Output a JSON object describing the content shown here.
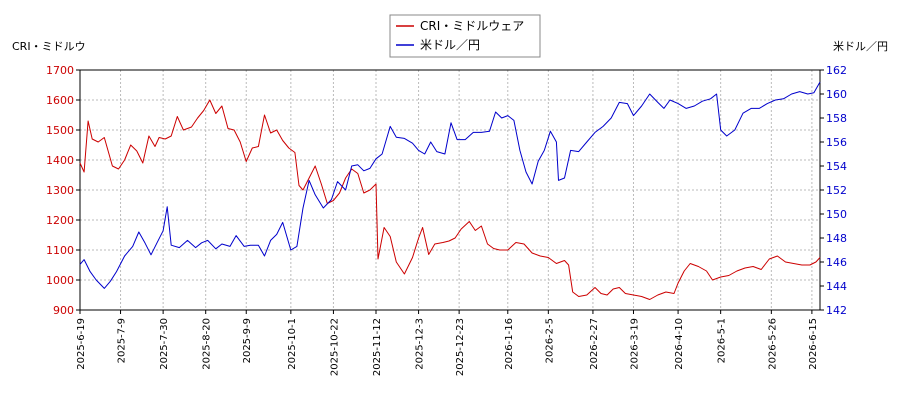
{
  "chart_data": {
    "type": "line",
    "left_axis_label": "CRI・ミドルウ",
    "right_axis_label": "米ドル／円",
    "legend_position": "top-center",
    "grid": true,
    "colors": {
      "cri": "#cc0000",
      "usdjpy": "#0000cc"
    },
    "y_left": {
      "min": 900,
      "max": 1700,
      "ticks": [
        "900",
        "1000",
        "1100",
        "1200",
        "1300",
        "1400",
        "1500",
        "1600",
        "1700"
      ]
    },
    "y_right": {
      "min": 142,
      "max": 162,
      "ticks": [
        "142",
        "144",
        "146",
        "148",
        "150",
        "152",
        "154",
        "156",
        "158",
        "160",
        "162"
      ]
    },
    "x_range": [
      "2025-06-19",
      "2026-06-19"
    ],
    "x_ticks": [
      "2025-6-19",
      "2025-7-9",
      "2025-7-30",
      "2025-8-20",
      "2025-9-9",
      "2025-10-1",
      "2025-10-22",
      "2025-11-12",
      "2025-12-3",
      "2025-12-23",
      "2026-1-16",
      "2026-2-5",
      "2026-2-27",
      "2026-3-19",
      "2026-4-10",
      "2026-5-1",
      "2026-5-26",
      "2026-6-15"
    ],
    "series": [
      {
        "name": "CRI・ミドルウェア",
        "axis": "left",
        "points": [
          [
            "2025-06-19",
            1390
          ],
          [
            "2025-06-21",
            1360
          ],
          [
            "2025-06-23",
            1530
          ],
          [
            "2025-06-25",
            1470
          ],
          [
            "2025-06-28",
            1460
          ],
          [
            "2025-07-01",
            1475
          ],
          [
            "2025-07-05",
            1380
          ],
          [
            "2025-07-08",
            1370
          ],
          [
            "2025-07-11",
            1400
          ],
          [
            "2025-07-14",
            1450
          ],
          [
            "2025-07-17",
            1430
          ],
          [
            "2025-07-20",
            1390
          ],
          [
            "2025-07-23",
            1480
          ],
          [
            "2025-07-26",
            1445
          ],
          [
            "2025-07-28",
            1475
          ],
          [
            "2025-07-31",
            1470
          ],
          [
            "2025-08-03",
            1480
          ],
          [
            "2025-08-06",
            1545
          ],
          [
            "2025-08-09",
            1500
          ],
          [
            "2025-08-13",
            1510
          ],
          [
            "2025-08-16",
            1540
          ],
          [
            "2025-08-19",
            1565
          ],
          [
            "2025-08-22",
            1600
          ],
          [
            "2025-08-25",
            1555
          ],
          [
            "2025-08-28",
            1580
          ],
          [
            "2025-08-31",
            1505
          ],
          [
            "2025-09-03",
            1500
          ],
          [
            "2025-09-06",
            1460
          ],
          [
            "2025-09-09",
            1395
          ],
          [
            "2025-09-12",
            1440
          ],
          [
            "2025-09-15",
            1445
          ],
          [
            "2025-09-18",
            1550
          ],
          [
            "2025-09-21",
            1490
          ],
          [
            "2025-09-24",
            1500
          ],
          [
            "2025-09-27",
            1465
          ],
          [
            "2025-09-30",
            1440
          ],
          [
            "2025-10-03",
            1425
          ],
          [
            "2025-10-05",
            1315
          ],
          [
            "2025-10-07",
            1300
          ],
          [
            "2025-10-10",
            1340
          ],
          [
            "2025-10-13",
            1380
          ],
          [
            "2025-10-16",
            1320
          ],
          [
            "2025-10-19",
            1255
          ],
          [
            "2025-10-22",
            1265
          ],
          [
            "2025-10-25",
            1290
          ],
          [
            "2025-10-28",
            1340
          ],
          [
            "2025-10-31",
            1370
          ],
          [
            "2025-11-03",
            1355
          ],
          [
            "2025-11-06",
            1290
          ],
          [
            "2025-11-09",
            1300
          ],
          [
            "2025-11-12",
            1320
          ],
          [
            "2025-11-13",
            1070
          ],
          [
            "2025-11-16",
            1175
          ],
          [
            "2025-11-19",
            1145
          ],
          [
            "2025-11-22",
            1060
          ],
          [
            "2025-11-26",
            1020
          ],
          [
            "2025-11-30",
            1075
          ],
          [
            "2025-12-03",
            1140
          ],
          [
            "2025-12-05",
            1175
          ],
          [
            "2025-12-08",
            1085
          ],
          [
            "2025-12-11",
            1120
          ],
          [
            "2025-12-15",
            1125
          ],
          [
            "2025-12-18",
            1130
          ],
          [
            "2025-12-21",
            1140
          ],
          [
            "2025-12-24",
            1170
          ],
          [
            "2025-12-28",
            1195
          ],
          [
            "2025-12-31",
            1165
          ],
          [
            "2026-01-03",
            1180
          ],
          [
            "2026-01-06",
            1120
          ],
          [
            "2026-01-09",
            1105
          ],
          [
            "2026-01-12",
            1100
          ],
          [
            "2026-01-16",
            1100
          ],
          [
            "2026-01-20",
            1125
          ],
          [
            "2026-01-24",
            1120
          ],
          [
            "2026-01-28",
            1090
          ],
          [
            "2026-02-01",
            1080
          ],
          [
            "2026-02-05",
            1075
          ],
          [
            "2026-02-09",
            1055
          ],
          [
            "2026-02-13",
            1065
          ],
          [
            "2026-02-15",
            1050
          ],
          [
            "2026-02-17",
            960
          ],
          [
            "2026-02-20",
            945
          ],
          [
            "2026-02-24",
            950
          ],
          [
            "2026-02-28",
            975
          ],
          [
            "2026-03-03",
            955
          ],
          [
            "2026-03-06",
            950
          ],
          [
            "2026-03-09",
            970
          ],
          [
            "2026-03-12",
            975
          ],
          [
            "2026-03-15",
            955
          ],
          [
            "2026-03-19",
            950
          ],
          [
            "2026-03-23",
            945
          ],
          [
            "2026-03-27",
            935
          ],
          [
            "2026-03-31",
            950
          ],
          [
            "2026-04-04",
            960
          ],
          [
            "2026-04-08",
            955
          ],
          [
            "2026-04-10",
            990
          ],
          [
            "2026-04-13",
            1030
          ],
          [
            "2026-04-16",
            1055
          ],
          [
            "2026-04-20",
            1045
          ],
          [
            "2026-04-24",
            1030
          ],
          [
            "2026-04-27",
            1000
          ],
          [
            "2026-05-01",
            1010
          ],
          [
            "2026-05-05",
            1015
          ],
          [
            "2026-05-09",
            1030
          ],
          [
            "2026-05-13",
            1040
          ],
          [
            "2026-05-17",
            1045
          ],
          [
            "2026-05-21",
            1035
          ],
          [
            "2026-05-25",
            1070
          ],
          [
            "2026-05-29",
            1080
          ],
          [
            "2026-06-02",
            1060
          ],
          [
            "2026-06-06",
            1055
          ],
          [
            "2026-06-10",
            1050
          ],
          [
            "2026-06-14",
            1050
          ],
          [
            "2026-06-17",
            1060
          ],
          [
            "2026-06-19",
            1075
          ]
        ]
      },
      {
        "name": "米ドル／円",
        "axis": "right",
        "points": [
          [
            "2025-06-19",
            145.8
          ],
          [
            "2025-06-21",
            146.2
          ],
          [
            "2025-06-24",
            145.2
          ],
          [
            "2025-06-27",
            144.5
          ],
          [
            "2025-07-01",
            143.8
          ],
          [
            "2025-07-04",
            144.4
          ],
          [
            "2025-07-07",
            145.2
          ],
          [
            "2025-07-11",
            146.5
          ],
          [
            "2025-07-15",
            147.3
          ],
          [
            "2025-07-18",
            148.5
          ],
          [
            "2025-07-21",
            147.6
          ],
          [
            "2025-07-24",
            146.6
          ],
          [
            "2025-07-27",
            147.6
          ],
          [
            "2025-07-30",
            148.6
          ],
          [
            "2025-08-01",
            150.6
          ],
          [
            "2025-08-03",
            147.4
          ],
          [
            "2025-08-07",
            147.2
          ],
          [
            "2025-08-11",
            147.8
          ],
          [
            "2025-08-15",
            147.2
          ],
          [
            "2025-08-18",
            147.6
          ],
          [
            "2025-08-21",
            147.8
          ],
          [
            "2025-08-25",
            147.1
          ],
          [
            "2025-08-28",
            147.5
          ],
          [
            "2025-09-01",
            147.3
          ],
          [
            "2025-09-04",
            148.2
          ],
          [
            "2025-09-08",
            147.3
          ],
          [
            "2025-09-11",
            147.4
          ],
          [
            "2025-09-15",
            147.4
          ],
          [
            "2025-09-18",
            146.5
          ],
          [
            "2025-09-21",
            147.8
          ],
          [
            "2025-09-24",
            148.3
          ],
          [
            "2025-09-27",
            149.3
          ],
          [
            "2025-10-01",
            147.0
          ],
          [
            "2025-10-04",
            147.3
          ],
          [
            "2025-10-07",
            150.5
          ],
          [
            "2025-10-10",
            152.8
          ],
          [
            "2025-10-13",
            151.6
          ],
          [
            "2025-10-17",
            150.5
          ],
          [
            "2025-10-21",
            151.2
          ],
          [
            "2025-10-24",
            152.7
          ],
          [
            "2025-10-28",
            152.0
          ],
          [
            "2025-10-31",
            154.0
          ],
          [
            "2025-11-03",
            154.1
          ],
          [
            "2025-11-06",
            153.6
          ],
          [
            "2025-11-09",
            153.8
          ],
          [
            "2025-11-12",
            154.6
          ],
          [
            "2025-11-15",
            155.0
          ],
          [
            "2025-11-19",
            157.3
          ],
          [
            "2025-11-22",
            156.4
          ],
          [
            "2025-11-26",
            156.3
          ],
          [
            "2025-11-30",
            155.9
          ],
          [
            "2025-12-03",
            155.3
          ],
          [
            "2025-12-06",
            155.0
          ],
          [
            "2025-12-09",
            156.0
          ],
          [
            "2025-12-12",
            155.2
          ],
          [
            "2025-12-16",
            155.0
          ],
          [
            "2025-12-19",
            157.6
          ],
          [
            "2025-12-22",
            156.2
          ],
          [
            "2025-12-26",
            156.2
          ],
          [
            "2025-12-30",
            156.8
          ],
          [
            "2026-01-03",
            156.8
          ],
          [
            "2026-01-07",
            156.9
          ],
          [
            "2026-01-10",
            158.5
          ],
          [
            "2026-01-13",
            158.0
          ],
          [
            "2026-01-16",
            158.2
          ],
          [
            "2026-01-19",
            157.8
          ],
          [
            "2026-01-22",
            155.3
          ],
          [
            "2026-01-25",
            153.5
          ],
          [
            "2026-01-28",
            152.5
          ],
          [
            "2026-01-31",
            154.4
          ],
          [
            "2026-02-03",
            155.3
          ],
          [
            "2026-02-06",
            156.9
          ],
          [
            "2026-02-09",
            156.0
          ],
          [
            "2026-02-10",
            152.8
          ],
          [
            "2026-02-13",
            153.0
          ],
          [
            "2026-02-16",
            155.3
          ],
          [
            "2026-02-20",
            155.2
          ],
          [
            "2026-02-24",
            156.0
          ],
          [
            "2026-02-28",
            156.8
          ],
          [
            "2026-03-04",
            157.3
          ],
          [
            "2026-03-08",
            158.0
          ],
          [
            "2026-03-12",
            159.3
          ],
          [
            "2026-03-16",
            159.2
          ],
          [
            "2026-03-19",
            158.2
          ],
          [
            "2026-03-23",
            159.0
          ],
          [
            "2026-03-27",
            160.0
          ],
          [
            "2026-03-31",
            159.3
          ],
          [
            "2026-04-03",
            158.8
          ],
          [
            "2026-04-06",
            159.5
          ],
          [
            "2026-04-10",
            159.2
          ],
          [
            "2026-04-14",
            158.8
          ],
          [
            "2026-04-18",
            159.0
          ],
          [
            "2026-04-22",
            159.4
          ],
          [
            "2026-04-26",
            159.6
          ],
          [
            "2026-04-29",
            160.0
          ],
          [
            "2026-05-01",
            157.0
          ],
          [
            "2026-05-04",
            156.5
          ],
          [
            "2026-05-08",
            157.0
          ],
          [
            "2026-05-12",
            158.4
          ],
          [
            "2026-05-16",
            158.8
          ],
          [
            "2026-05-20",
            158.8
          ],
          [
            "2026-05-24",
            159.2
          ],
          [
            "2026-05-28",
            159.5
          ],
          [
            "2026-06-01",
            159.6
          ],
          [
            "2026-06-05",
            160.0
          ],
          [
            "2026-06-09",
            160.2
          ],
          [
            "2026-06-13",
            160.0
          ],
          [
            "2026-06-16",
            160.1
          ],
          [
            "2026-06-19",
            161.0
          ]
        ]
      }
    ]
  }
}
